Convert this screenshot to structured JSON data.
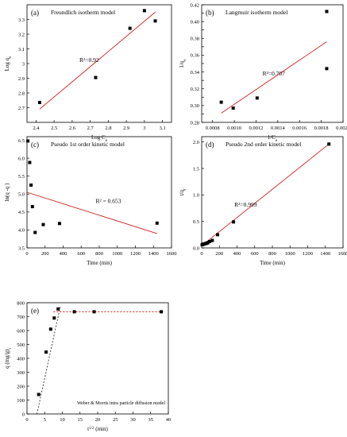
{
  "chart_data": [
    {
      "type": "scatter",
      "label": "(a)",
      "title": "Freundlich isotherm model",
      "xlabel": "Log C",
      "xlabel_sub": "e",
      "ylabel": "Log q",
      "ylabel_sub": "e",
      "xlim": [
        2.35,
        3.15
      ],
      "ylim": [
        2.6,
        3.4
      ],
      "xticks": [
        2.4,
        2.5,
        2.6,
        2.7,
        2.8,
        2.9,
        3.0,
        3.1
      ],
      "yticks": [
        2.7,
        2.8,
        2.9,
        3.0,
        3.1,
        3.2,
        3.3
      ],
      "points": [
        [
          2.42,
          2.735
        ],
        [
          2.73,
          2.905
        ],
        [
          2.92,
          3.24
        ],
        [
          3.0,
          3.36
        ],
        [
          3.06,
          3.29
        ]
      ],
      "fit": [
        [
          2.42,
          2.69
        ],
        [
          3.06,
          3.35
        ]
      ],
      "annotation": "R²=0.92",
      "annotation_at": [
        2.64,
        3.01
      ],
      "fit_color": "#d42020"
    },
    {
      "type": "scatter",
      "label": "(b)",
      "title": "Langmuir isotherm model",
      "xlabel": "1/C",
      "xlabel_sub": "e",
      "ylabel": "1/q",
      "ylabel_sub": "e",
      "xlim": [
        0.0007,
        0.002
      ],
      "ylim": [
        0.28,
        0.42
      ],
      "xticks": [
        0.0008,
        0.001,
        0.0012,
        0.0014,
        0.0016,
        0.0018,
        0.002
      ],
      "xtick_labels": [
        "0.0008",
        "0.0010",
        "0.0012",
        "0.0014",
        "0.0016",
        "0.0018",
        "0.0020"
      ],
      "yticks": [
        0.28,
        0.29,
        0.3,
        0.31,
        0.32,
        0.33,
        0.34,
        0.35,
        0.36,
        0.37,
        0.38,
        0.39,
        0.4,
        0.41,
        0.42
      ],
      "ytick_labels": [
        "0.28",
        "",
        "0.30",
        "",
        "0.32",
        "",
        "0.34",
        "",
        "0.36",
        "",
        "0.38",
        "",
        "0.40",
        "",
        "0.42"
      ],
      "points": [
        [
          0.00088,
          0.304
        ],
        [
          0.00099,
          0.297
        ],
        [
          0.00121,
          0.309
        ],
        [
          0.00185,
          0.412
        ],
        [
          0.00185,
          0.344
        ]
      ],
      "fit": [
        [
          0.00088,
          0.291
        ],
        [
          0.00185,
          0.376
        ]
      ],
      "annotation": "R²=0.707",
      "annotation_at": [
        0.00126,
        0.336
      ],
      "fit_color": "#d42020"
    },
    {
      "type": "scatter",
      "label": "(c)",
      "title": "Pseudo 1st order kinetic model",
      "xlabel": "Time (min)",
      "ylabel": "ln(q -q )",
      "ylabel_sub": "",
      "xlim": [
        0,
        1600
      ],
      "ylim": [
        3.5,
        6.6
      ],
      "xticks": [
        0,
        200,
        400,
        600,
        800,
        1000,
        1200,
        1400,
        1600
      ],
      "yticks": [
        3.5,
        4.0,
        4.5,
        5.0,
        5.5,
        6.0,
        6.5
      ],
      "ytick_labels": [
        "3.5",
        "4.0",
        "4.5",
        "5.0",
        "5.5",
        "6.0",
        "6.5"
      ],
      "points": [
        [
          10,
          6.48
        ],
        [
          30,
          5.88
        ],
        [
          45,
          5.25
        ],
        [
          60,
          4.65
        ],
        [
          90,
          3.93
        ],
        [
          180,
          4.15
        ],
        [
          360,
          4.18
        ],
        [
          1440,
          4.19
        ]
      ],
      "fit": [
        [
          0,
          5.05
        ],
        [
          1440,
          3.9
        ]
      ],
      "annotation": "R² =  0.653",
      "annotation_at": [
        760,
        4.75
      ],
      "fit_color": "#d42020"
    },
    {
      "type": "scatter",
      "label": "(d)",
      "title": "Pseudo 2nd order kinetic model",
      "xlabel": "Time (min)",
      "ylabel": "t/q",
      "ylabel_sub": "t",
      "xlim": [
        0,
        1600
      ],
      "ylim": [
        0,
        2.1
      ],
      "xticks": [
        0,
        200,
        400,
        600,
        800,
        1000,
        1200,
        1400,
        1600
      ],
      "yticks": [
        0.0,
        0.5,
        1.0,
        1.5,
        2.0
      ],
      "ytick_labels": [
        "0.0",
        "0.5",
        "1.0",
        "1.5",
        "2.0"
      ],
      "points": [
        [
          5,
          0.06
        ],
        [
          10,
          0.065
        ],
        [
          20,
          0.07
        ],
        [
          30,
          0.075
        ],
        [
          40,
          0.08
        ],
        [
          50,
          0.085
        ],
        [
          60,
          0.09
        ],
        [
          70,
          0.1
        ],
        [
          90,
          0.12
        ],
        [
          120,
          0.14
        ],
        [
          180,
          0.25
        ],
        [
          360,
          0.49
        ],
        [
          1440,
          1.96
        ]
      ],
      "fit": [
        [
          0,
          0.04
        ],
        [
          1440,
          1.96
        ]
      ],
      "annotation": "R²=0.999",
      "annotation_at": [
        370,
        0.78
      ],
      "fit_color": "#d42020"
    },
    {
      "type": "scatter",
      "label": "(e)",
      "title": "Weber & Morris intra particle diffusion model",
      "xlabel": "t  (min)",
      "xlabel_sup": "1/2",
      "ylabel": "q  (mg/g)",
      "ylabel_sub": "t",
      "xlim": [
        0,
        40
      ],
      "ylim": [
        0,
        800
      ],
      "xticks": [
        0,
        5,
        10,
        15,
        20,
        25,
        30,
        35,
        40
      ],
      "yticks": [
        0,
        100,
        200,
        300,
        400,
        500,
        600,
        700,
        800
      ],
      "points": [
        [
          3.3,
          140
        ],
        [
          5.4,
          445
        ],
        [
          6.7,
          610
        ],
        [
          7.7,
          690
        ],
        [
          8.8,
          755
        ],
        [
          13.4,
          735
        ],
        [
          19,
          735
        ],
        [
          38,
          735
        ]
      ],
      "fit": [
        [
          2.8,
          0
        ],
        [
          9.5,
          780
        ]
      ],
      "fit2": [
        [
          7.5,
          735
        ],
        [
          39,
          735
        ]
      ],
      "fit_color": "#333333",
      "fit2_color": "#d42020"
    }
  ]
}
